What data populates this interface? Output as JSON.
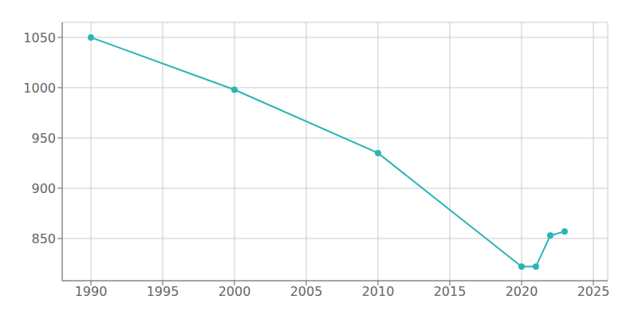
{
  "chart_data": {
    "type": "line",
    "x": [
      1990,
      2000,
      2010,
      2020,
      2021,
      2022,
      2023
    ],
    "values": [
      1050,
      998,
      935,
      822,
      822,
      853,
      857
    ],
    "color": "#2ab5b5",
    "marker": "o",
    "xlim": [
      1988,
      2026
    ],
    "ylim": [
      808,
      1065
    ],
    "xticks": [
      1990,
      1995,
      2000,
      2005,
      2010,
      2015,
      2020,
      2025
    ],
    "yticks": [
      850,
      900,
      950,
      1000,
      1050
    ],
    "grid": true
  }
}
